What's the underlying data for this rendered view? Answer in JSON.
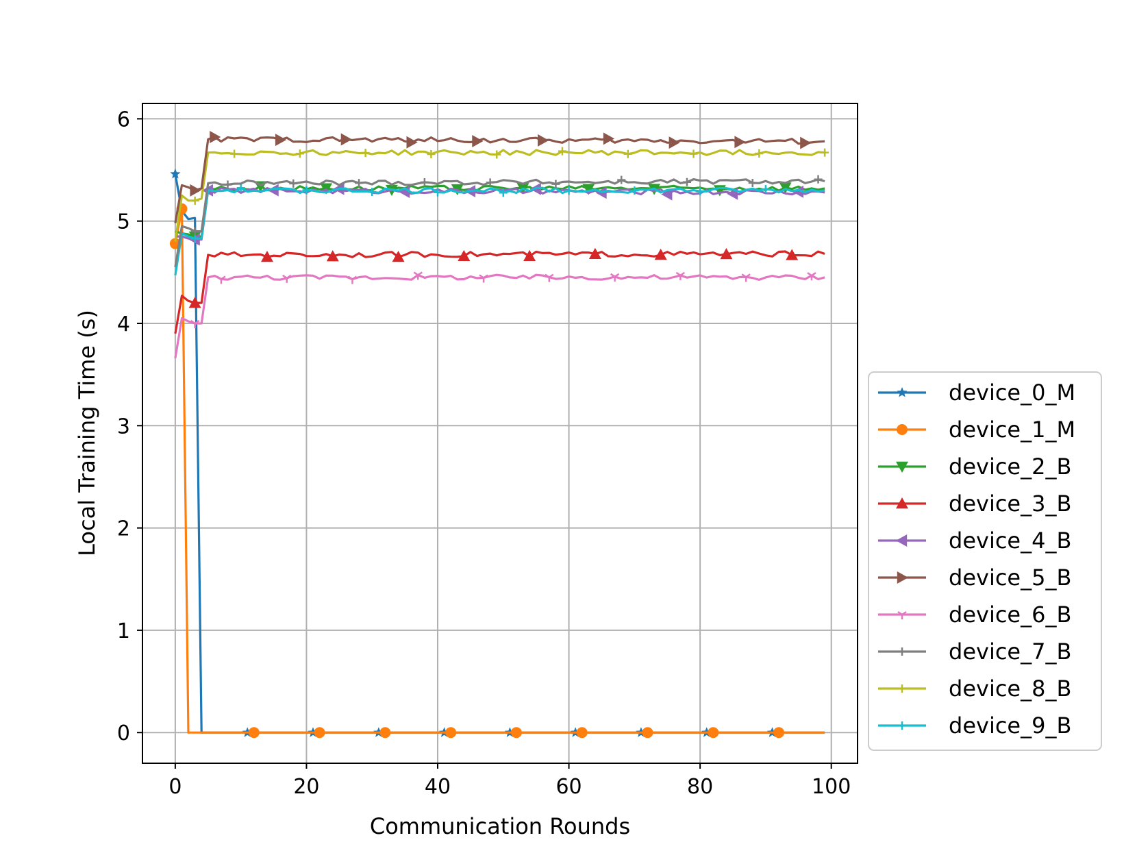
{
  "chart_data": {
    "type": "line",
    "title": "",
    "xlabel": "Communication Rounds",
    "ylabel": "Local Training Time (s)",
    "xlim": [
      -5,
      104
    ],
    "ylim": [
      -0.3,
      6.15
    ],
    "xticks": [
      0,
      20,
      40,
      60,
      80,
      100
    ],
    "yticks": [
      0,
      1,
      2,
      3,
      4,
      5,
      6
    ],
    "x_range": [
      0,
      99
    ],
    "grid": true,
    "legend_position": "outside-lower-right",
    "series": [
      {
        "name": "device_0_M",
        "color": "#1f77b4",
        "marker": "star",
        "knots": [
          [
            0,
            5.46
          ],
          [
            1,
            5.1
          ],
          [
            2,
            5.02
          ],
          [
            3,
            5.03
          ],
          [
            4,
            0
          ],
          [
            99,
            0
          ]
        ]
      },
      {
        "name": "device_1_M",
        "color": "#ff7f0e",
        "marker": "circle",
        "knots": [
          [
            0,
            4.78
          ],
          [
            1,
            5.12
          ],
          [
            2,
            0
          ],
          [
            99,
            0
          ]
        ]
      },
      {
        "name": "device_2_B",
        "color": "#2ca02c",
        "marker": "triangle-down",
        "knots": [
          [
            0,
            4.9
          ],
          [
            1,
            4.88
          ],
          [
            2,
            4.87
          ],
          [
            3,
            4.85
          ],
          [
            4,
            4.85
          ],
          [
            5,
            5.32
          ],
          [
            99,
            5.32
          ]
        ]
      },
      {
        "name": "device_3_B",
        "color": "#d62728",
        "marker": "triangle-up",
        "knots": [
          [
            0,
            3.9
          ],
          [
            1,
            4.27
          ],
          [
            2,
            4.22
          ],
          [
            3,
            4.2
          ],
          [
            4,
            4.2
          ],
          [
            5,
            4.67
          ],
          [
            99,
            4.68
          ]
        ]
      },
      {
        "name": "device_4_B",
        "color": "#9467bd",
        "marker": "triangle-left",
        "knots": [
          [
            0,
            4.85
          ],
          [
            1,
            4.85
          ],
          [
            2,
            4.83
          ],
          [
            3,
            4.82
          ],
          [
            4,
            4.82
          ],
          [
            5,
            5.3
          ],
          [
            99,
            5.28
          ]
        ]
      },
      {
        "name": "device_5_B",
        "color": "#8c564b",
        "marker": "triangle-right",
        "knots": [
          [
            0,
            4.98
          ],
          [
            1,
            5.35
          ],
          [
            2,
            5.33
          ],
          [
            3,
            5.3
          ],
          [
            4,
            5.32
          ],
          [
            5,
            5.8
          ],
          [
            99,
            5.78
          ]
        ]
      },
      {
        "name": "device_6_B",
        "color": "#e377c2",
        "marker": "tri",
        "knots": [
          [
            0,
            3.66
          ],
          [
            1,
            4.05
          ],
          [
            2,
            4.02
          ],
          [
            3,
            4.0
          ],
          [
            4,
            4.0
          ],
          [
            5,
            4.45
          ],
          [
            99,
            4.45
          ]
        ]
      },
      {
        "name": "device_7_B",
        "color": "#7f7f7f",
        "marker": "plus",
        "knots": [
          [
            0,
            4.55
          ],
          [
            1,
            4.95
          ],
          [
            2,
            4.93
          ],
          [
            3,
            4.9
          ],
          [
            4,
            4.9
          ],
          [
            5,
            5.37
          ],
          [
            99,
            5.39
          ]
        ]
      },
      {
        "name": "device_8_B",
        "color": "#bcbd22",
        "marker": "plus",
        "knots": [
          [
            0,
            4.8
          ],
          [
            1,
            5.25
          ],
          [
            2,
            5.2
          ],
          [
            3,
            5.2
          ],
          [
            4,
            5.22
          ],
          [
            5,
            5.67
          ],
          [
            99,
            5.67
          ]
        ]
      },
      {
        "name": "device_9_B",
        "color": "#17becf",
        "marker": "plus",
        "knots": [
          [
            0,
            4.47
          ],
          [
            1,
            4.88
          ],
          [
            2,
            4.85
          ],
          [
            3,
            4.83
          ],
          [
            4,
            4.83
          ],
          [
            5,
            5.3
          ],
          [
            99,
            5.3
          ]
        ]
      }
    ]
  }
}
